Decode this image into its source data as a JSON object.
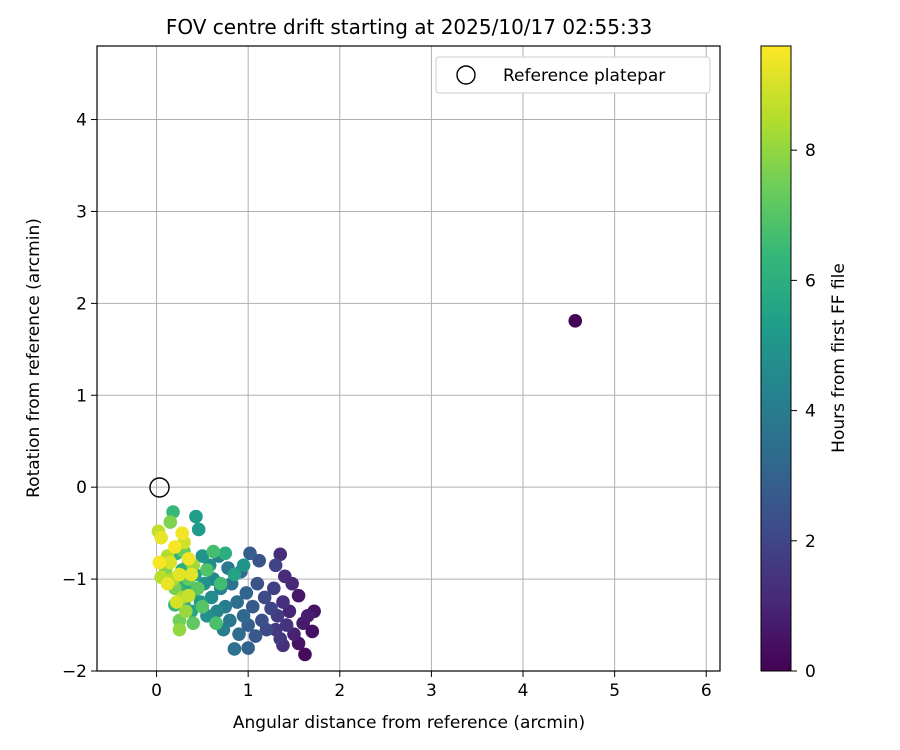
{
  "chart_data": {
    "type": "scatter",
    "title": "FOV centre drift starting at 2025/10/17 02:55:33",
    "xlabel": "Angular distance from reference (arcmin)",
    "ylabel": "Rotation from reference (arcmin)",
    "xlim": [
      -0.65,
      6.15
    ],
    "ylim": [
      -2.0,
      4.8
    ],
    "xticks": [
      0,
      1,
      2,
      3,
      4,
      5,
      6
    ],
    "yticks": [
      -2,
      -1,
      0,
      1,
      2,
      3,
      4
    ],
    "grid": true,
    "legend": {
      "position": "top-right",
      "entries": [
        "Reference platepar"
      ]
    },
    "reference_point": {
      "x": 0,
      "y": 0,
      "label": "Reference platepar"
    },
    "colorbar": {
      "label": "Hours from first FF file",
      "range": [
        0,
        9.6
      ],
      "ticks": [
        0,
        2,
        4,
        6,
        8
      ],
      "colormap": [
        "#440154",
        "#482878",
        "#3e4a89",
        "#31688e",
        "#26828e",
        "#1f9e89",
        "#35b779",
        "#6ece58",
        "#b5de2b",
        "#fde725"
      ]
    },
    "points": [
      {
        "x": 4.57,
        "y": 1.81,
        "h": 0.1
      },
      {
        "x": 1.62,
        "y": -1.82,
        "h": 0.3
      },
      {
        "x": 1.7,
        "y": -1.57,
        "h": 0.4
      },
      {
        "x": 1.72,
        "y": -1.35,
        "h": 0.5
      },
      {
        "x": 1.55,
        "y": -1.7,
        "h": 0.5
      },
      {
        "x": 1.6,
        "y": -1.48,
        "h": 0.7
      },
      {
        "x": 1.65,
        "y": -1.4,
        "h": 0.8
      },
      {
        "x": 1.5,
        "y": -1.6,
        "h": 0.9
      },
      {
        "x": 1.45,
        "y": -1.35,
        "h": 1.0
      },
      {
        "x": 1.55,
        "y": -1.18,
        "h": 0.6
      },
      {
        "x": 1.48,
        "y": -1.05,
        "h": 1.1
      },
      {
        "x": 1.4,
        "y": -0.97,
        "h": 1.2
      },
      {
        "x": 1.35,
        "y": -0.73,
        "h": 1.2
      },
      {
        "x": 1.38,
        "y": -1.25,
        "h": 1.3
      },
      {
        "x": 1.42,
        "y": -1.5,
        "h": 1.4
      },
      {
        "x": 1.35,
        "y": -1.65,
        "h": 1.5
      },
      {
        "x": 1.3,
        "y": -1.55,
        "h": 1.6
      },
      {
        "x": 1.38,
        "y": -1.72,
        "h": 1.3
      },
      {
        "x": 1.32,
        "y": -1.4,
        "h": 1.7
      },
      {
        "x": 1.28,
        "y": -1.1,
        "h": 1.8
      },
      {
        "x": 1.3,
        "y": -0.85,
        "h": 1.9
      },
      {
        "x": 1.25,
        "y": -1.32,
        "h": 2.0
      },
      {
        "x": 1.2,
        "y": -1.55,
        "h": 2.1
      },
      {
        "x": 1.18,
        "y": -1.2,
        "h": 2.2
      },
      {
        "x": 1.15,
        "y": -1.45,
        "h": 2.3
      },
      {
        "x": 1.12,
        "y": -0.8,
        "h": 2.4
      },
      {
        "x": 1.1,
        "y": -1.05,
        "h": 2.5
      },
      {
        "x": 1.08,
        "y": -1.62,
        "h": 2.6
      },
      {
        "x": 1.05,
        "y": -1.3,
        "h": 2.7
      },
      {
        "x": 1.02,
        "y": -0.72,
        "h": 2.8
      },
      {
        "x": 1.0,
        "y": -1.5,
        "h": 2.9
      },
      {
        "x": 1.0,
        "y": -1.75,
        "h": 3.0
      },
      {
        "x": 0.98,
        "y": -1.15,
        "h": 3.1
      },
      {
        "x": 0.95,
        "y": -1.4,
        "h": 3.2
      },
      {
        "x": 0.92,
        "y": -0.92,
        "h": 3.3
      },
      {
        "x": 0.9,
        "y": -1.6,
        "h": 3.4
      },
      {
        "x": 0.88,
        "y": -1.25,
        "h": 3.5
      },
      {
        "x": 0.85,
        "y": -1.76,
        "h": 3.6
      },
      {
        "x": 0.82,
        "y": -1.05,
        "h": 3.7
      },
      {
        "x": 0.8,
        "y": -1.45,
        "h": 3.8
      },
      {
        "x": 0.78,
        "y": -0.88,
        "h": 3.9
      },
      {
        "x": 0.75,
        "y": -1.3,
        "h": 4.0
      },
      {
        "x": 0.73,
        "y": -1.55,
        "h": 4.1
      },
      {
        "x": 0.7,
        "y": -1.1,
        "h": 4.2
      },
      {
        "x": 0.68,
        "y": -0.75,
        "h": 4.3
      },
      {
        "x": 0.66,
        "y": -1.35,
        "h": 4.4
      },
      {
        "x": 0.62,
        "y": -1.0,
        "h": 4.5
      },
      {
        "x": 0.6,
        "y": -1.2,
        "h": 4.6
      },
      {
        "x": 0.58,
        "y": -0.85,
        "h": 4.7
      },
      {
        "x": 0.55,
        "y": -1.4,
        "h": 4.8
      },
      {
        "x": 0.52,
        "y": -1.05,
        "h": 4.9
      },
      {
        "x": 0.5,
        "y": -0.75,
        "h": 5.0
      },
      {
        "x": 0.48,
        "y": -1.25,
        "h": 5.1
      },
      {
        "x": 0.46,
        "y": -0.46,
        "h": 5.2
      },
      {
        "x": 0.43,
        "y": -0.32,
        "h": 5.3
      },
      {
        "x": 0.42,
        "y": -0.95,
        "h": 5.4
      },
      {
        "x": 0.4,
        "y": -1.15,
        "h": 5.5
      },
      {
        "x": 0.38,
        "y": -1.35,
        "h": 5.6
      },
      {
        "x": 0.35,
        "y": -0.8,
        "h": 5.7
      },
      {
        "x": 0.33,
        "y": -1.05,
        "h": 5.8
      },
      {
        "x": 0.3,
        "y": -1.25,
        "h": 5.9
      },
      {
        "x": 0.28,
        "y": -0.9,
        "h": 6.0
      },
      {
        "x": 0.25,
        "y": -1.1,
        "h": 6.1
      },
      {
        "x": 0.22,
        "y": -0.72,
        "h": 6.2
      },
      {
        "x": 0.2,
        "y": -1.28,
        "h": 6.3
      },
      {
        "x": 0.18,
        "y": -0.27,
        "h": 6.4
      },
      {
        "x": 0.95,
        "y": -0.85,
        "h": 5.0
      },
      {
        "x": 0.85,
        "y": -0.95,
        "h": 5.6
      },
      {
        "x": 0.75,
        "y": -0.72,
        "h": 6.0
      },
      {
        "x": 0.65,
        "y": -1.48,
        "h": 6.8
      },
      {
        "x": 0.7,
        "y": -1.05,
        "h": 6.6
      },
      {
        "x": 0.62,
        "y": -0.7,
        "h": 6.7
      },
      {
        "x": 0.55,
        "y": -0.9,
        "h": 6.9
      },
      {
        "x": 0.5,
        "y": -1.3,
        "h": 7.0
      },
      {
        "x": 0.45,
        "y": -1.1,
        "h": 7.1
      },
      {
        "x": 0.4,
        "y": -1.48,
        "h": 7.2
      },
      {
        "x": 0.35,
        "y": -1.0,
        "h": 7.3
      },
      {
        "x": 0.3,
        "y": -0.7,
        "h": 7.4
      },
      {
        "x": 0.25,
        "y": -1.45,
        "h": 7.5
      },
      {
        "x": 0.2,
        "y": -1.1,
        "h": 7.6
      },
      {
        "x": 0.15,
        "y": -0.38,
        "h": 7.7
      },
      {
        "x": 0.1,
        "y": -0.9,
        "h": 7.8
      },
      {
        "x": 0.25,
        "y": -1.55,
        "h": 8.0
      },
      {
        "x": 0.32,
        "y": -1.35,
        "h": 8.1
      },
      {
        "x": 0.4,
        "y": -0.85,
        "h": 8.2
      },
      {
        "x": 0.28,
        "y": -1.2,
        "h": 8.3
      },
      {
        "x": 0.18,
        "y": -1.0,
        "h": 8.4
      },
      {
        "x": 0.12,
        "y": -0.75,
        "h": 8.5
      },
      {
        "x": 0.05,
        "y": -0.98,
        "h": 8.6
      },
      {
        "x": 0.02,
        "y": -0.48,
        "h": 8.7
      },
      {
        "x": 0.35,
        "y": -1.18,
        "h": 8.8
      },
      {
        "x": 0.3,
        "y": -0.6,
        "h": 8.9
      },
      {
        "x": 0.22,
        "y": -1.25,
        "h": 9.0
      },
      {
        "x": 0.15,
        "y": -0.82,
        "h": 9.1
      },
      {
        "x": 0.25,
        "y": -0.95,
        "h": 9.2
      },
      {
        "x": 0.05,
        "y": -0.55,
        "h": 9.3
      },
      {
        "x": 0.35,
        "y": -0.78,
        "h": 9.4
      },
      {
        "x": 0.2,
        "y": -0.65,
        "h": 9.5
      },
      {
        "x": 0.03,
        "y": -0.82,
        "h": 9.5
      },
      {
        "x": 0.28,
        "y": -0.5,
        "h": 9.4
      },
      {
        "x": 0.12,
        "y": -1.05,
        "h": 9.3
      },
      {
        "x": 0.38,
        "y": -0.95,
        "h": 9.2
      }
    ]
  }
}
